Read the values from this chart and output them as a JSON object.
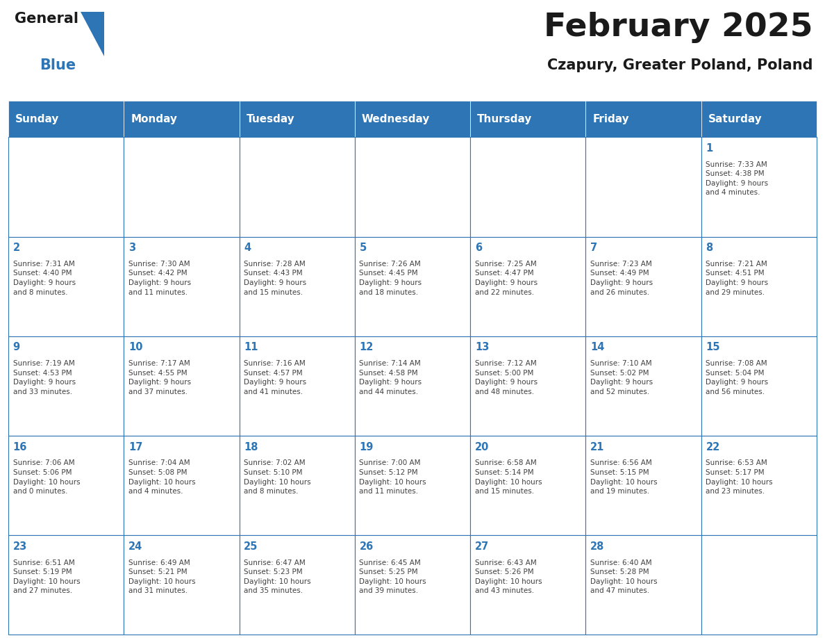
{
  "title": "February 2025",
  "subtitle": "Czapury, Greater Poland, Poland",
  "days_of_week": [
    "Sunday",
    "Monday",
    "Tuesday",
    "Wednesday",
    "Thursday",
    "Friday",
    "Saturday"
  ],
  "header_bg": "#2E75B6",
  "header_text": "#FFFFFF",
  "cell_bg": "#FFFFFF",
  "cell_border": "#2E75B6",
  "day_number_color": "#2E75B6",
  "info_text_color": "#404040",
  "title_color": "#1a1a1a",
  "subtitle_color": "#1a1a1a",
  "logo_general_color": "#1a1a1a",
  "logo_blue_color": "#2E75B6",
  "background_color": "#FFFFFF",
  "weeks": [
    [
      {
        "day": "",
        "info": ""
      },
      {
        "day": "",
        "info": ""
      },
      {
        "day": "",
        "info": ""
      },
      {
        "day": "",
        "info": ""
      },
      {
        "day": "",
        "info": ""
      },
      {
        "day": "",
        "info": ""
      },
      {
        "day": "1",
        "info": "Sunrise: 7:33 AM\nSunset: 4:38 PM\nDaylight: 9 hours\nand 4 minutes."
      }
    ],
    [
      {
        "day": "2",
        "info": "Sunrise: 7:31 AM\nSunset: 4:40 PM\nDaylight: 9 hours\nand 8 minutes."
      },
      {
        "day": "3",
        "info": "Sunrise: 7:30 AM\nSunset: 4:42 PM\nDaylight: 9 hours\nand 11 minutes."
      },
      {
        "day": "4",
        "info": "Sunrise: 7:28 AM\nSunset: 4:43 PM\nDaylight: 9 hours\nand 15 minutes."
      },
      {
        "day": "5",
        "info": "Sunrise: 7:26 AM\nSunset: 4:45 PM\nDaylight: 9 hours\nand 18 minutes."
      },
      {
        "day": "6",
        "info": "Sunrise: 7:25 AM\nSunset: 4:47 PM\nDaylight: 9 hours\nand 22 minutes."
      },
      {
        "day": "7",
        "info": "Sunrise: 7:23 AM\nSunset: 4:49 PM\nDaylight: 9 hours\nand 26 minutes."
      },
      {
        "day": "8",
        "info": "Sunrise: 7:21 AM\nSunset: 4:51 PM\nDaylight: 9 hours\nand 29 minutes."
      }
    ],
    [
      {
        "day": "9",
        "info": "Sunrise: 7:19 AM\nSunset: 4:53 PM\nDaylight: 9 hours\nand 33 minutes."
      },
      {
        "day": "10",
        "info": "Sunrise: 7:17 AM\nSunset: 4:55 PM\nDaylight: 9 hours\nand 37 minutes."
      },
      {
        "day": "11",
        "info": "Sunrise: 7:16 AM\nSunset: 4:57 PM\nDaylight: 9 hours\nand 41 minutes."
      },
      {
        "day": "12",
        "info": "Sunrise: 7:14 AM\nSunset: 4:58 PM\nDaylight: 9 hours\nand 44 minutes."
      },
      {
        "day": "13",
        "info": "Sunrise: 7:12 AM\nSunset: 5:00 PM\nDaylight: 9 hours\nand 48 minutes."
      },
      {
        "day": "14",
        "info": "Sunrise: 7:10 AM\nSunset: 5:02 PM\nDaylight: 9 hours\nand 52 minutes."
      },
      {
        "day": "15",
        "info": "Sunrise: 7:08 AM\nSunset: 5:04 PM\nDaylight: 9 hours\nand 56 minutes."
      }
    ],
    [
      {
        "day": "16",
        "info": "Sunrise: 7:06 AM\nSunset: 5:06 PM\nDaylight: 10 hours\nand 0 minutes."
      },
      {
        "day": "17",
        "info": "Sunrise: 7:04 AM\nSunset: 5:08 PM\nDaylight: 10 hours\nand 4 minutes."
      },
      {
        "day": "18",
        "info": "Sunrise: 7:02 AM\nSunset: 5:10 PM\nDaylight: 10 hours\nand 8 minutes."
      },
      {
        "day": "19",
        "info": "Sunrise: 7:00 AM\nSunset: 5:12 PM\nDaylight: 10 hours\nand 11 minutes."
      },
      {
        "day": "20",
        "info": "Sunrise: 6:58 AM\nSunset: 5:14 PM\nDaylight: 10 hours\nand 15 minutes."
      },
      {
        "day": "21",
        "info": "Sunrise: 6:56 AM\nSunset: 5:15 PM\nDaylight: 10 hours\nand 19 minutes."
      },
      {
        "day": "22",
        "info": "Sunrise: 6:53 AM\nSunset: 5:17 PM\nDaylight: 10 hours\nand 23 minutes."
      }
    ],
    [
      {
        "day": "23",
        "info": "Sunrise: 6:51 AM\nSunset: 5:19 PM\nDaylight: 10 hours\nand 27 minutes."
      },
      {
        "day": "24",
        "info": "Sunrise: 6:49 AM\nSunset: 5:21 PM\nDaylight: 10 hours\nand 31 minutes."
      },
      {
        "day": "25",
        "info": "Sunrise: 6:47 AM\nSunset: 5:23 PM\nDaylight: 10 hours\nand 35 minutes."
      },
      {
        "day": "26",
        "info": "Sunrise: 6:45 AM\nSunset: 5:25 PM\nDaylight: 10 hours\nand 39 minutes."
      },
      {
        "day": "27",
        "info": "Sunrise: 6:43 AM\nSunset: 5:26 PM\nDaylight: 10 hours\nand 43 minutes."
      },
      {
        "day": "28",
        "info": "Sunrise: 6:40 AM\nSunset: 5:28 PM\nDaylight: 10 hours\nand 47 minutes."
      },
      {
        "day": "",
        "info": ""
      }
    ]
  ]
}
